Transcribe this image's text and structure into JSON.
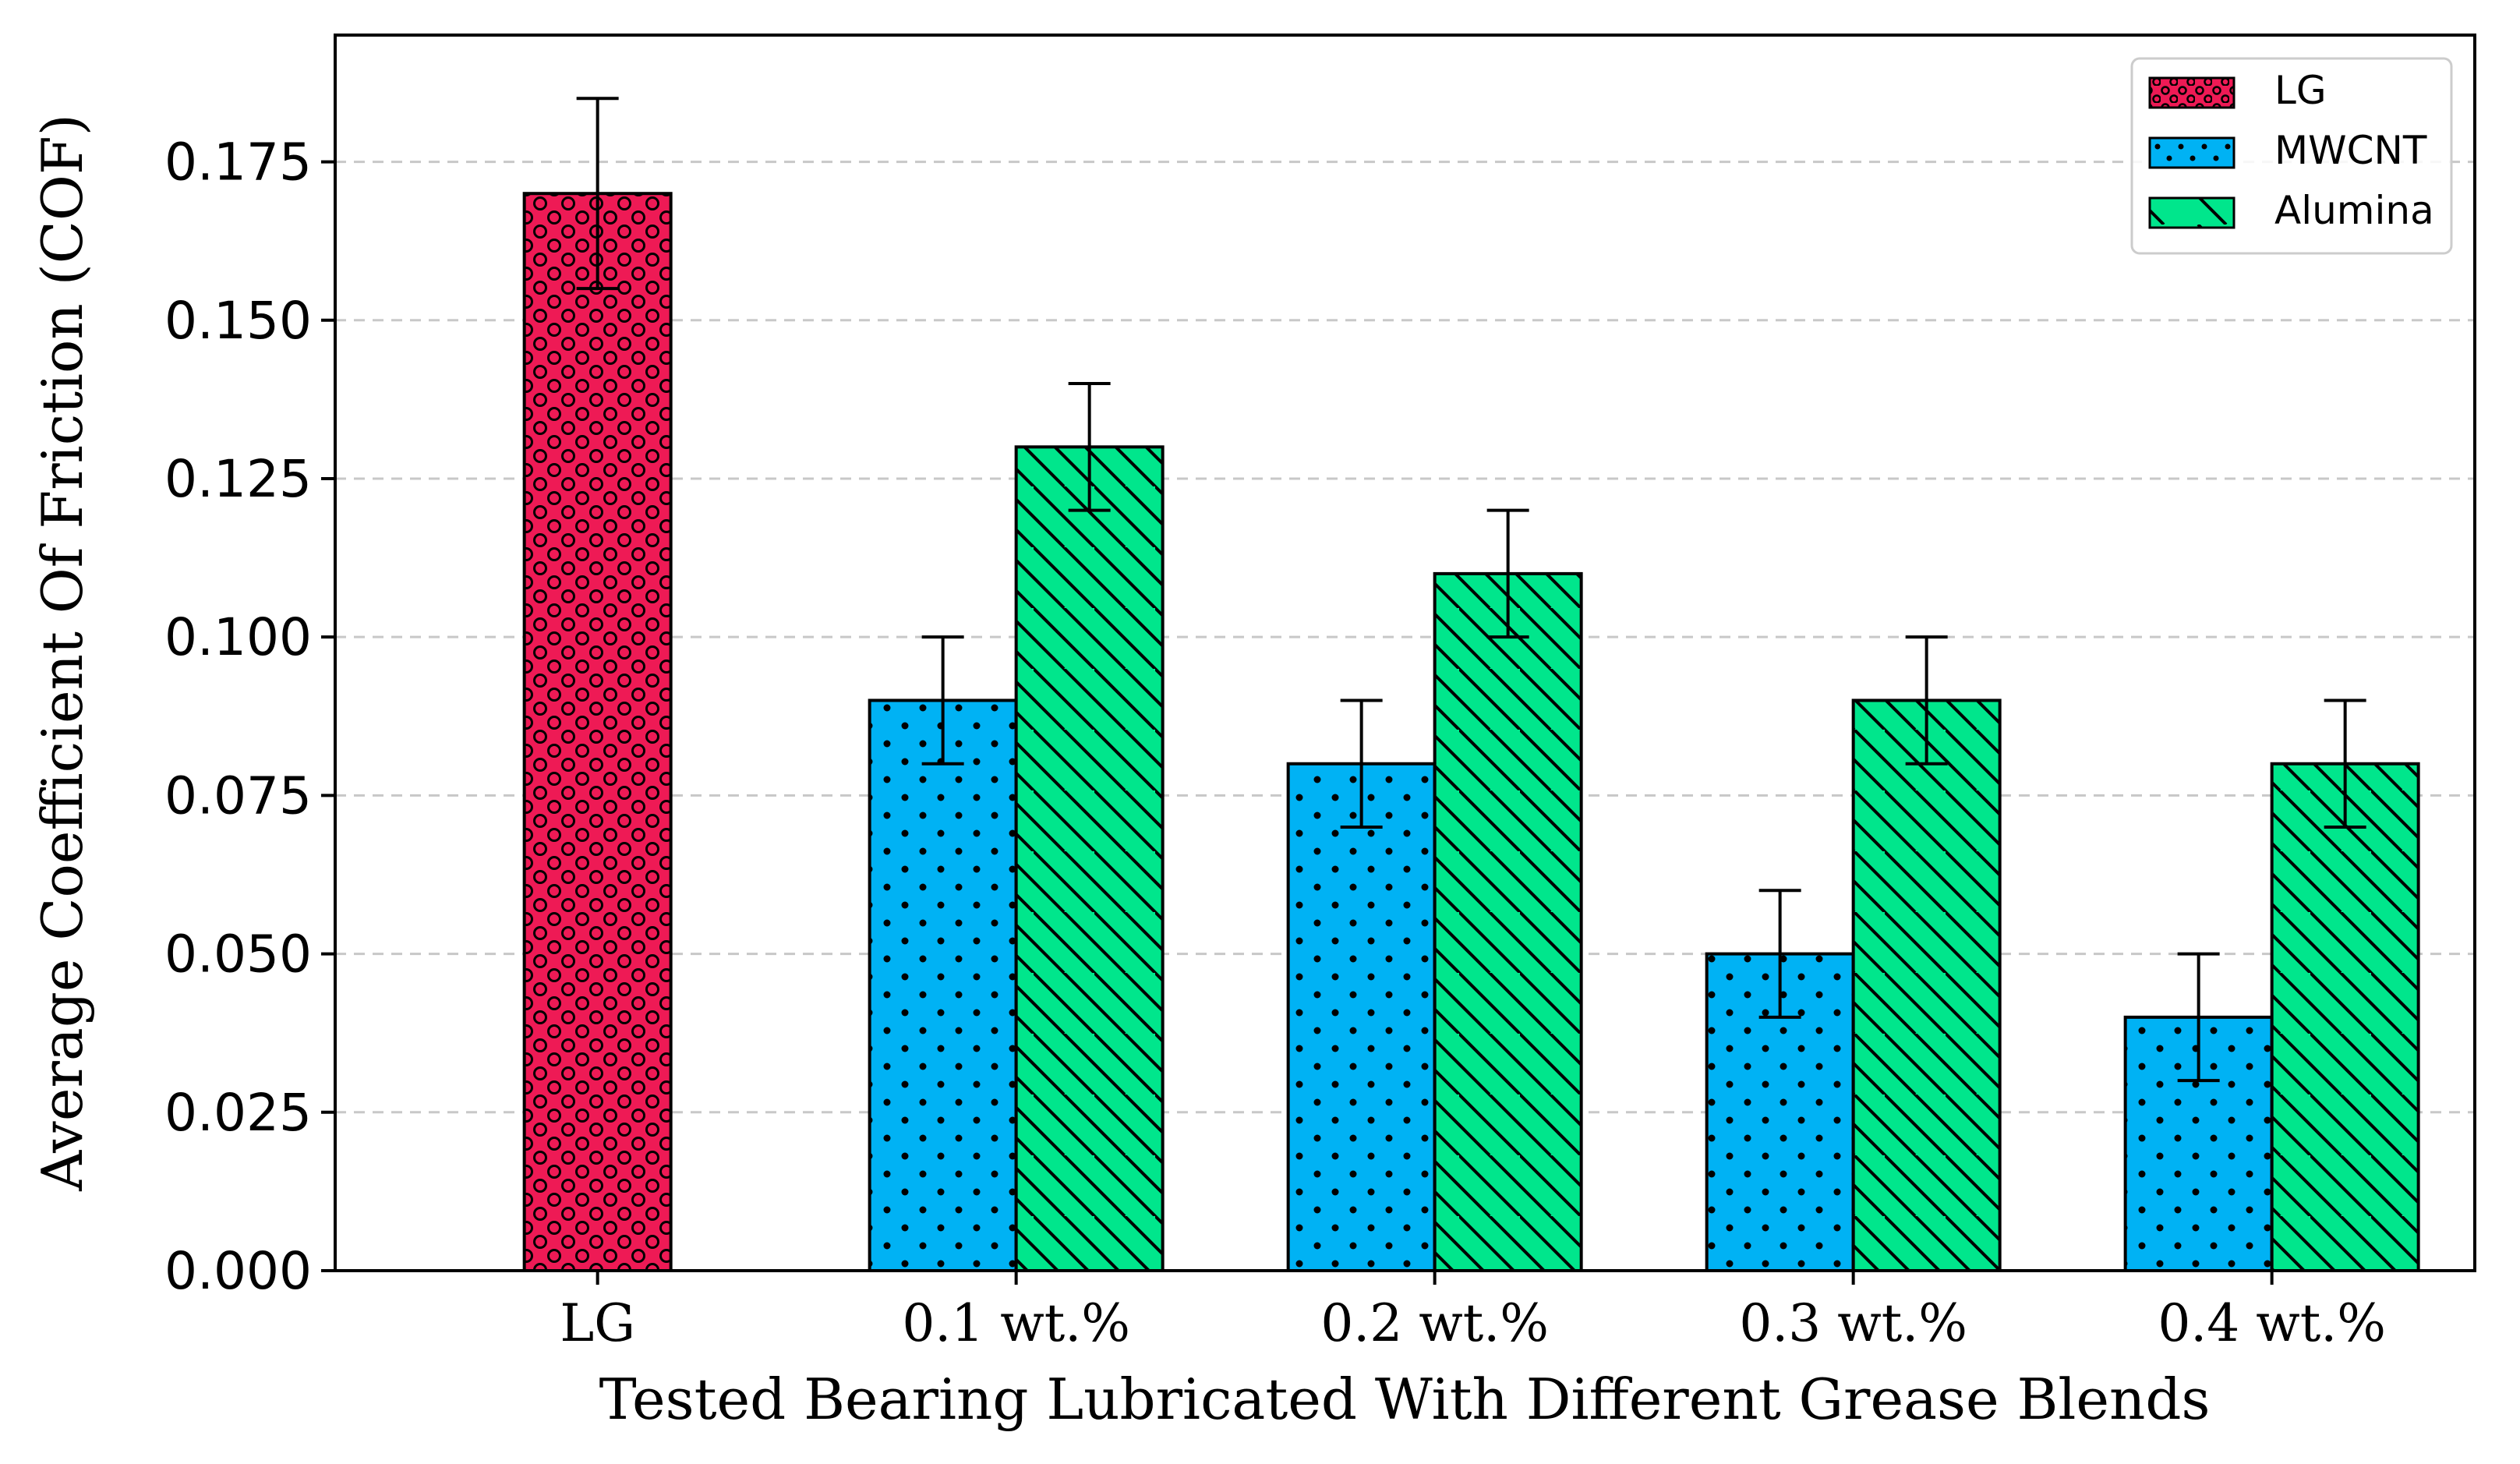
{
  "chart_data": {
    "type": "bar",
    "title": "",
    "xlabel": "Tested Bearing Lubricated With Different Grease Blends",
    "ylabel": "Average Coefficient Of Friction (COF)",
    "ylim": [
      0,
      0.195
    ],
    "yticks": [
      "0.000",
      "0.025",
      "0.050",
      "0.075",
      "0.100",
      "0.125",
      "0.150",
      "0.175"
    ],
    "grid": "horizontal dashed",
    "legend_position": "top-right",
    "categories": [
      "LG",
      "0.1 wt.%",
      "0.2 wt.%",
      "0.3 wt.%",
      "0.4 wt.%"
    ],
    "series": [
      {
        "name": "LG",
        "color": "#ee1a55",
        "pattern": "circles",
        "values": [
          0.17,
          null,
          null,
          null,
          null
        ],
        "errors": [
          0.015,
          null,
          null,
          null,
          null
        ]
      },
      {
        "name": "MWCNT",
        "color": "#00b2f4",
        "pattern": "dots",
        "values": [
          null,
          0.09,
          0.08,
          0.05,
          0.04
        ],
        "errors": [
          null,
          0.01,
          0.01,
          0.01,
          0.01
        ]
      },
      {
        "name": "Alumina",
        "color": "#00e68c",
        "pattern": "hatch",
        "values": [
          null,
          0.13,
          0.11,
          0.09,
          0.08
        ],
        "errors": [
          null,
          0.01,
          0.01,
          0.01,
          0.01
        ]
      }
    ]
  }
}
